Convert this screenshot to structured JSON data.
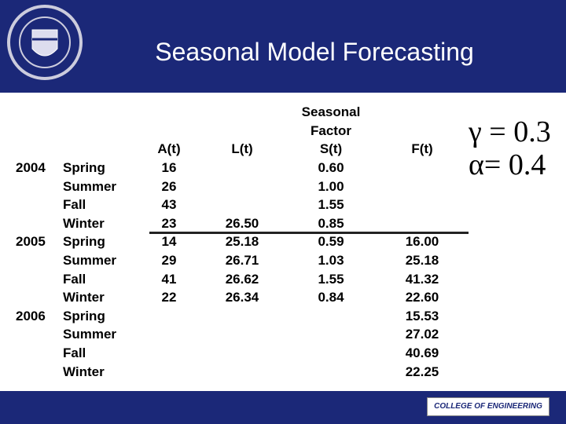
{
  "header": {
    "title": "Seasonal Model Forecasting"
  },
  "table": {
    "headers": {
      "a": "A(t)",
      "l": "L(t)",
      "s": [
        "Seasonal",
        "Factor",
        "S(t)"
      ],
      "f": "F(t)"
    },
    "rows": [
      {
        "year": "2004",
        "season": "Spring",
        "a": "16",
        "s": "0.60"
      },
      {
        "season": "Summer",
        "a": "26",
        "s": "1.00"
      },
      {
        "season": "Fall",
        "a": "43",
        "s": "1.55"
      },
      {
        "season": "Winter",
        "a": "23",
        "l": "26.50",
        "s": "0.85"
      },
      {
        "year": "2005",
        "season": "Spring",
        "a": "14",
        "l": "25.18",
        "s": "0.59",
        "f": "16.00"
      },
      {
        "season": "Summer",
        "a": "29",
        "l": "26.71",
        "s": "1.03",
        "f": "25.18"
      },
      {
        "season": "Fall",
        "a": "41",
        "l": "26.62",
        "s": "1.55",
        "f": "41.32"
      },
      {
        "season": "Winter",
        "a": "22",
        "l": "26.34",
        "s": "0.84",
        "f": "22.60"
      },
      {
        "year": "2006",
        "season": "Spring",
        "f": "15.53"
      },
      {
        "season": "Summer",
        "f": "27.02"
      },
      {
        "season": "Fall",
        "f": "40.69"
      },
      {
        "season": "Winter",
        "f": "22.25"
      }
    ]
  },
  "parameters": [
    "γ = 0.3",
    "α= 0.4"
  ],
  "footer": {
    "logo": "COLLEGE OF ENGINEERING"
  }
}
